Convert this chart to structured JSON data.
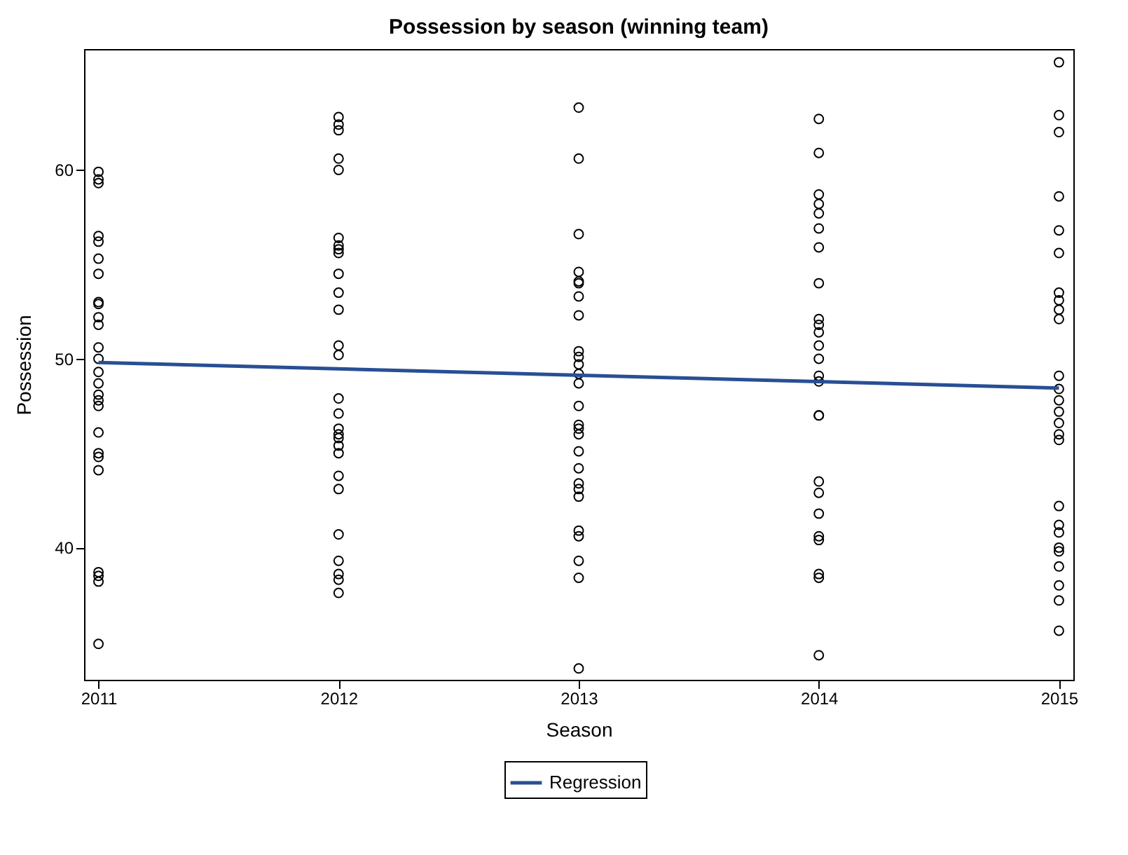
{
  "chart_data": {
    "type": "scatter",
    "title": "Possession by season (winning team)",
    "xlabel": "Season",
    "ylabel": "Possession",
    "xlim": [
      2010.94,
      2015.06
    ],
    "ylim": [
      33,
      66.4
    ],
    "xticks": [
      2011,
      2012,
      2013,
      2014,
      2015
    ],
    "yticks": [
      40,
      50,
      60
    ],
    "legend": "bottom",
    "series": [
      {
        "marker": "circle",
        "color": "#000000",
        "x": [
          2011,
          2011,
          2011,
          2011,
          2011,
          2011,
          2011,
          2011,
          2011,
          2011,
          2011,
          2011,
          2011,
          2011,
          2011,
          2011,
          2011,
          2011,
          2011,
          2011,
          2011,
          2011,
          2011,
          2011,
          2011,
          2011,
          2012,
          2012,
          2012,
          2012,
          2012,
          2012,
          2012,
          2012,
          2012,
          2012,
          2012,
          2012,
          2012,
          2012,
          2012,
          2012,
          2012,
          2012,
          2012,
          2012,
          2012,
          2012,
          2012,
          2012,
          2012,
          2012,
          2012,
          2012,
          2013,
          2013,
          2013,
          2013,
          2013,
          2013,
          2013,
          2013,
          2013,
          2013,
          2013,
          2013,
          2013,
          2013,
          2013,
          2013,
          2013,
          2013,
          2013,
          2013,
          2013,
          2013,
          2013,
          2013,
          2013,
          2013,
          2013,
          2014,
          2014,
          2014,
          2014,
          2014,
          2014,
          2014,
          2014,
          2014,
          2014,
          2014,
          2014,
          2014,
          2014,
          2014,
          2014,
          2014,
          2014,
          2014,
          2014,
          2014,
          2014,
          2014,
          2014,
          2014,
          2015,
          2015,
          2015,
          2015,
          2015,
          2015,
          2015,
          2015,
          2015,
          2015,
          2015,
          2015,
          2015,
          2015,
          2015,
          2015,
          2015,
          2015,
          2015,
          2015,
          2015,
          2015,
          2015,
          2015,
          2015,
          2015
        ],
        "values": [
          59.9,
          59.5,
          59.3,
          56.5,
          56.2,
          55.3,
          54.5,
          53.0,
          52.9,
          52.2,
          51.8,
          50.6,
          50.0,
          49.3,
          48.7,
          48.1,
          47.8,
          47.5,
          46.1,
          45.0,
          44.8,
          44.1,
          38.7,
          38.5,
          38.2,
          34.9,
          62.8,
          62.4,
          62.1,
          60.6,
          60.0,
          56.4,
          56.0,
          55.8,
          55.6,
          54.5,
          53.5,
          52.6,
          50.7,
          50.2,
          47.9,
          47.1,
          46.3,
          46.0,
          45.8,
          45.4,
          45.0,
          43.8,
          43.1,
          40.7,
          39.3,
          38.6,
          38.3,
          37.6,
          63.3,
          60.6,
          56.6,
          54.6,
          54.1,
          54.0,
          53.3,
          52.3,
          50.4,
          50.1,
          49.7,
          49.2,
          48.7,
          47.5,
          46.5,
          46.3,
          46.0,
          45.1,
          44.2,
          43.4,
          43.1,
          42.7,
          40.9,
          40.6,
          39.3,
          38.4,
          33.6,
          62.7,
          60.9,
          58.7,
          58.2,
          57.7,
          56.9,
          55.9,
          54.0,
          52.1,
          51.8,
          51.4,
          50.7,
          50.0,
          49.1,
          48.8,
          47.0,
          47.0,
          43.5,
          42.9,
          41.8,
          40.6,
          40.4,
          38.6,
          38.4,
          34.3,
          65.7,
          62.9,
          62.0,
          58.6,
          56.8,
          55.6,
          53.5,
          53.1,
          52.6,
          52.1,
          49.1,
          48.4,
          47.8,
          47.2,
          46.6,
          46.0,
          45.7,
          42.2,
          41.2,
          40.8,
          40.0,
          39.8,
          39.0,
          38.0,
          37.2,
          35.6
        ]
      },
      {
        "type": "line",
        "name": "Regression",
        "color": "#284f94",
        "x": [
          2011,
          2015
        ],
        "values": [
          49.8,
          48.45
        ]
      }
    ]
  }
}
